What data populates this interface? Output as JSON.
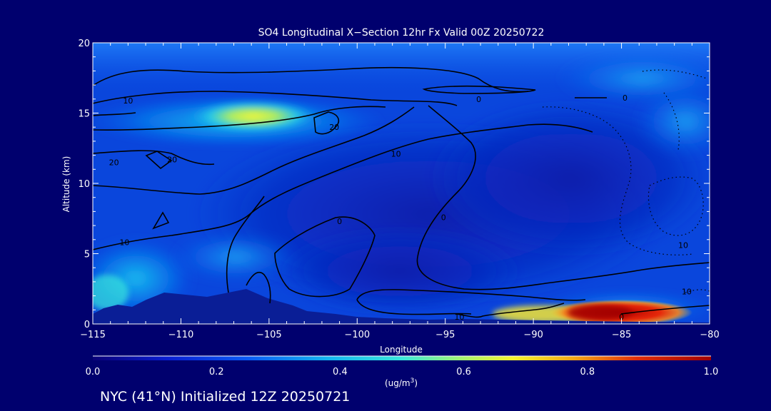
{
  "chart_data": {
    "type": "heatmap",
    "title": "SO4 Longitudinal X−Section 12hr  Fx Valid 00Z 20250722",
    "xlabel": "Longitude",
    "ylabel": "Altitude (km)",
    "xlim": [
      -115,
      -80
    ],
    "ylim": [
      0,
      20
    ],
    "x_ticks": [
      -115,
      -110,
      -105,
      -100,
      -95,
      -90,
      -85,
      -80
    ],
    "x_tick_labels": [
      "−115",
      "−110",
      "−105",
      "−100",
      "−95",
      "−90",
      "−85",
      "−80"
    ],
    "y_ticks": [
      0,
      5,
      10,
      15,
      20
    ],
    "y_tick_labels": [
      "0",
      "5",
      "10",
      "15",
      "20"
    ],
    "colorbar": {
      "min": 0.0,
      "max": 1.0,
      "ticks": [
        0.0,
        0.2,
        0.4,
        0.6,
        0.8,
        1.0
      ],
      "tick_labels": [
        "0.0",
        "0.2",
        "0.4",
        "0.6",
        "0.8",
        "1.0"
      ],
      "units_prefix": "(ug/m",
      "units_sup": "3",
      "units_suffix": ")"
    },
    "hotspots": [
      {
        "name": "upper-tropospheric-plume",
        "lon": -105.5,
        "alt": 14.8,
        "value": 0.55
      },
      {
        "name": "boundary-layer-plume",
        "lon": -86.5,
        "alt": 0.8,
        "value": 0.95
      },
      {
        "name": "surface-west",
        "lon": -114,
        "alt": 2.0,
        "value": 0.38
      }
    ],
    "contour_labels": [
      {
        "text": "10",
        "lon": -113,
        "alt": 15.9
      },
      {
        "text": "20",
        "lon": -113.8,
        "alt": 11.5
      },
      {
        "text": "10",
        "lon": -113.2,
        "alt": 5.8
      },
      {
        "text": "20",
        "lon": -110.5,
        "alt": 11.7
      },
      {
        "text": "20",
        "lon": -101.3,
        "alt": 14.0
      },
      {
        "text": "10",
        "lon": -97.8,
        "alt": 12.1
      },
      {
        "text": "0",
        "lon": -101,
        "alt": 7.3
      },
      {
        "text": "0",
        "lon": -95.1,
        "alt": 7.6
      },
      {
        "text": "0",
        "lon": -93.1,
        "alt": 16.0
      },
      {
        "text": "0",
        "lon": -84.8,
        "alt": 16.1
      },
      {
        "text": "10",
        "lon": -94.2,
        "alt": 0.5
      },
      {
        "text": "0",
        "lon": -85,
        "alt": 0.5
      },
      {
        "text": "10",
        "lon": -81.5,
        "alt": 5.6
      },
      {
        "text": "10",
        "lon": -81.3,
        "alt": 2.3
      }
    ]
  },
  "footer": {
    "init_label": "NYC (41°N) Initialized 12Z 20250721"
  }
}
